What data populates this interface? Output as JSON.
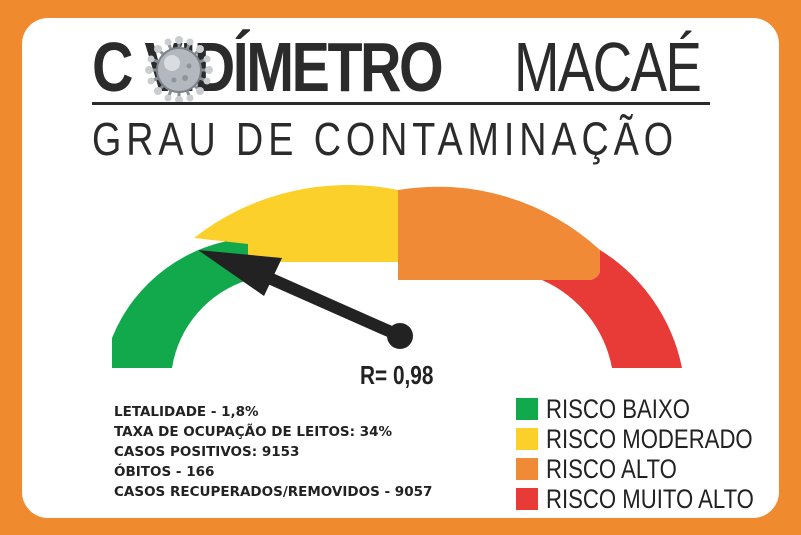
{
  "header": {
    "title_bold": "C VIDÍMETRO",
    "title_light": "MACAÉ",
    "subtitle": "GRAU DE CONTAMINAÇÃO"
  },
  "gauge": {
    "r_label": "R= 0,98",
    "r_value": 0.98,
    "segments": [
      {
        "name": "baixo",
        "color": "#12a94d"
      },
      {
        "name": "moderado",
        "color": "#fcd02a"
      },
      {
        "name": "alto",
        "color": "#f08a36"
      },
      {
        "name": "muito-alto",
        "color": "#e83a37"
      }
    ],
    "needle_color": "#222222"
  },
  "stats": {
    "letalidade": "LETALIDADE - 1,8%",
    "ocupacao": "TAXA DE OCUPAÇÃO DE LEITOS: 34%",
    "positivos": "CASOS POSITIVOS: 9153",
    "obitos": "ÓBITOS - 166",
    "recuperados": "CASOS RECUPERADOS/REMOVIDOS - 9057"
  },
  "legend": [
    {
      "label": "RISCO BAIXO",
      "color": "#12a94d"
    },
    {
      "label": "RISCO MODERADO",
      "color": "#fcd02a"
    },
    {
      "label": "RISCO ALTO",
      "color": "#f08a36"
    },
    {
      "label": "RISCO MUITO ALTO",
      "color": "#e83a37"
    }
  ],
  "icons": {
    "virus": "coronavirus-icon"
  }
}
